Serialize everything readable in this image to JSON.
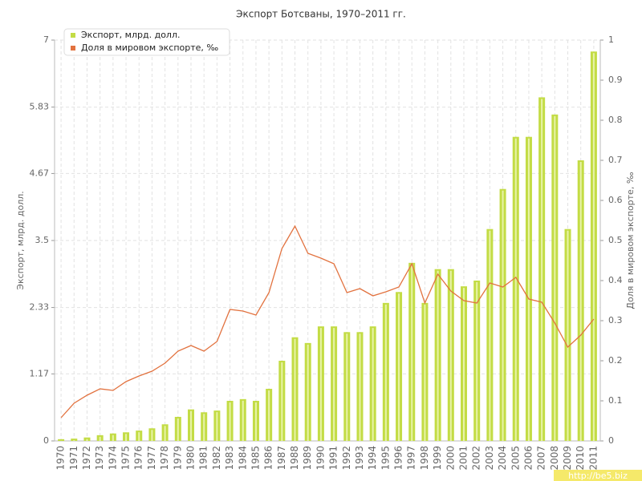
{
  "chart_data": {
    "type": "combo",
    "title": "Экспорт Ботсваны, 1970–2011 гг.",
    "y_label": "Экспорт, млрд. долл.",
    "y2_label": "Доля в мировом экспорте, ‰",
    "categories": [
      "1970",
      "1971",
      "1972",
      "1973",
      "1974",
      "1975",
      "1976",
      "1977",
      "1978",
      "1979",
      "1980",
      "1981",
      "1982",
      "1983",
      "1984",
      "1985",
      "1986",
      "1987",
      "1988",
      "1989",
      "1990",
      "1991",
      "1992",
      "1993",
      "1994",
      "1995",
      "1996",
      "1997",
      "1998",
      "1999",
      "2000",
      "2001",
      "2002",
      "2003",
      "2004",
      "2005",
      "2006",
      "2007",
      "2008",
      "2009",
      "2010",
      "2011"
    ],
    "series": [
      {
        "name": "Экспорт, млрд. долл.",
        "type": "bar",
        "color": "#c3dc45",
        "values": [
          0.03,
          0.04,
          0.06,
          0.1,
          0.13,
          0.15,
          0.18,
          0.22,
          0.29,
          0.42,
          0.55,
          0.5,
          0.53,
          0.7,
          0.73,
          0.7,
          0.91,
          1.4,
          1.81,
          1.71,
          2.0,
          2.0,
          1.9,
          1.9,
          2.0,
          2.41,
          2.6,
          3.11,
          2.41,
          3.0,
          3.0,
          2.7,
          2.8,
          3.7,
          4.4,
          5.31,
          5.31,
          6.0,
          5.7,
          3.7,
          4.9,
          6.8
        ]
      },
      {
        "name": "Доля в мировом экспорте, ‰",
        "type": "line",
        "axis": "y2",
        "color": "#e2723f",
        "values": [
          0.058,
          0.094,
          0.114,
          0.13,
          0.126,
          0.148,
          0.162,
          0.174,
          0.194,
          0.224,
          0.238,
          0.224,
          0.248,
          0.328,
          0.324,
          0.314,
          0.37,
          0.48,
          0.536,
          0.468,
          0.456,
          0.442,
          0.37,
          0.38,
          0.362,
          0.372,
          0.384,
          0.442,
          0.344,
          0.416,
          0.374,
          0.35,
          0.344,
          0.394,
          0.384,
          0.408,
          0.354,
          0.346,
          0.294,
          0.234,
          0.264,
          0.304
        ]
      }
    ],
    "ylim": [
      0,
      7
    ],
    "yticks": [
      0,
      1.17,
      2.33,
      3.5,
      4.67,
      5.83,
      7
    ],
    "y2lim": [
      0,
      1
    ],
    "y2ticks": [
      0,
      0.1,
      0.2,
      0.3,
      0.4,
      0.5,
      0.6,
      0.7,
      0.8,
      0.9,
      1
    ],
    "grid": true,
    "legend": "top-left"
  },
  "watermark": "http://be5.biz"
}
